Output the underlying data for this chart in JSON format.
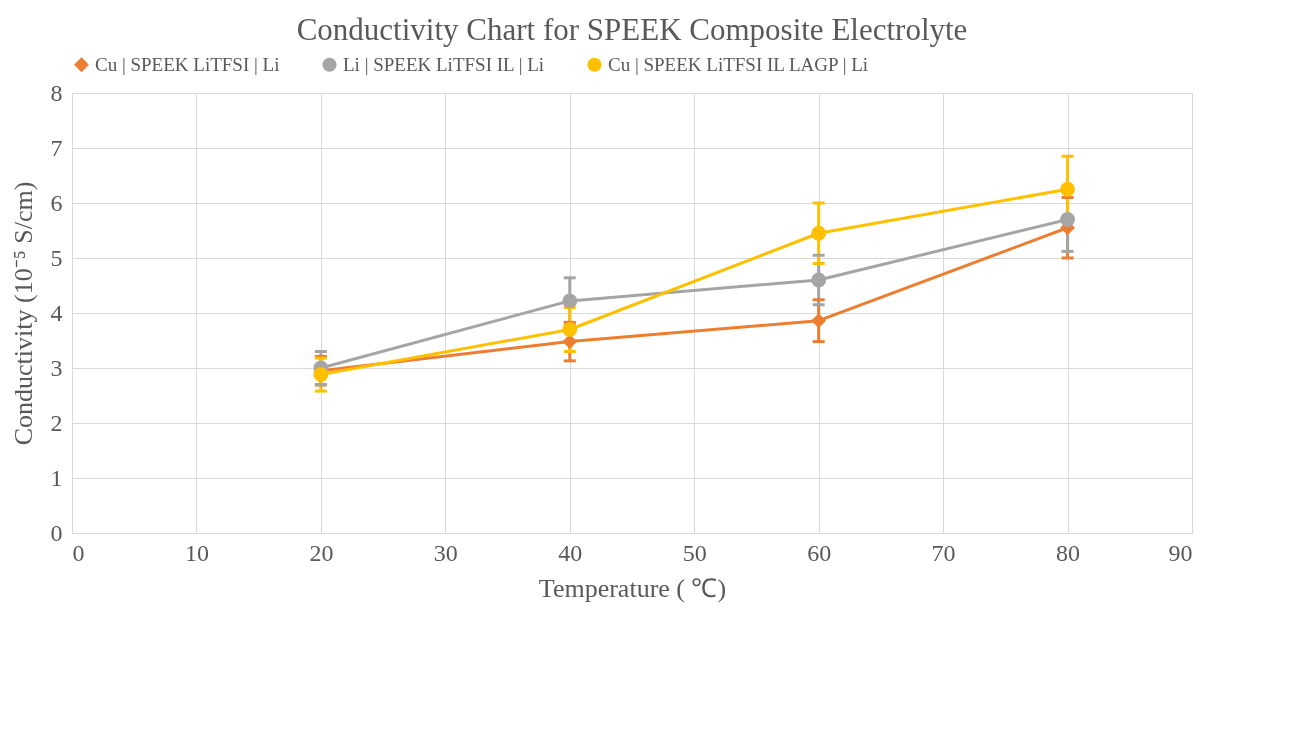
{
  "chart_data": {
    "type": "line",
    "title": "Conductivity Chart for SPEEK Composite Electrolyte",
    "xlabel": "Temperature ( ℃)",
    "ylabel": "Conductivity (10⁻⁵ S/cm)",
    "xlim": [
      0,
      90
    ],
    "xticks": [
      0,
      10,
      20,
      30,
      40,
      50,
      60,
      70,
      80,
      90
    ],
    "ylim": [
      0,
      8
    ],
    "yticks": [
      0,
      1,
      2,
      3,
      4,
      5,
      6,
      7,
      8
    ],
    "grid": true,
    "legend": "top",
    "series": [
      {
        "name": "Cu | SPEEK LiTFSI | Li",
        "color": "#ed7d31",
        "marker": "diamond",
        "x": [
          20,
          40,
          60,
          80
        ],
        "values": [
          2.95,
          3.48,
          3.86,
          5.55
        ],
        "errors": [
          0.26,
          0.35,
          0.38,
          0.55
        ]
      },
      {
        "name": "Li | SPEEK LiTFSI IL | Li",
        "color": "#a5a5a5",
        "marker": "circle",
        "x": [
          20,
          40,
          60,
          80
        ],
        "values": [
          3.0,
          4.22,
          4.6,
          5.7
        ],
        "errors": [
          0.3,
          0.42,
          0.45,
          0.58
        ]
      },
      {
        "name": "Cu | SPEEK LiTFSI IL LAGP | Li",
        "color": "#ffc000",
        "marker": "circle",
        "x": [
          20,
          40,
          60,
          80
        ],
        "values": [
          2.88,
          3.7,
          5.45,
          6.25
        ],
        "errors": [
          0.3,
          0.4,
          0.55,
          0.6
        ]
      }
    ]
  }
}
